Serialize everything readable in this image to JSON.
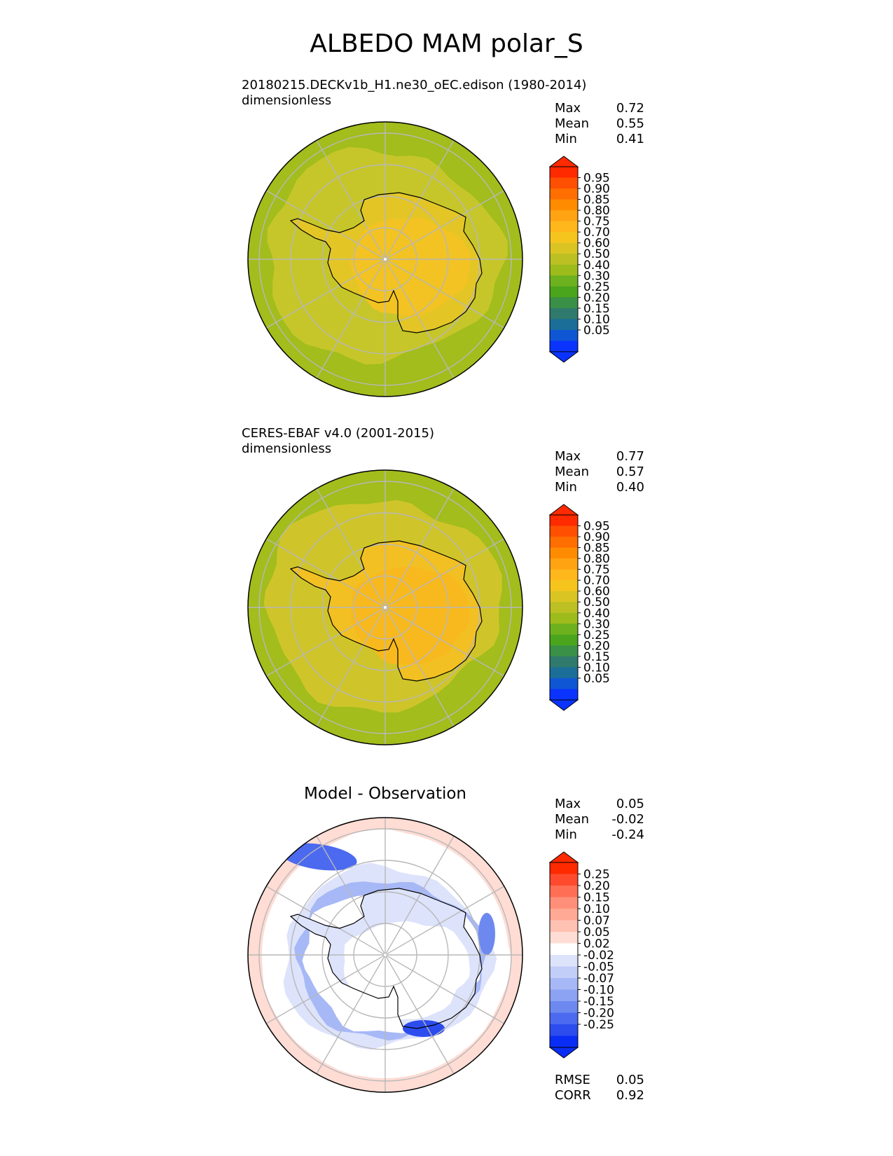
{
  "figure": {
    "title": "ALBEDO MAM polar_S"
  },
  "panels": [
    {
      "id": "test",
      "title_line1": "20180215.DECKv1b_H1.ne30_oEC.edison (1980-2014)",
      "title_line2": "dimensionless",
      "stats": [
        {
          "label": "Max",
          "value": "0.72"
        },
        {
          "label": "Mean",
          "value": "0.55"
        },
        {
          "label": "Min",
          "value": "0.41"
        }
      ],
      "colors": {
        "ocean": "#a2bd1c",
        "seaice": "#c6c62a",
        "ice": "#e3c626",
        "interior": "#f2c322"
      }
    },
    {
      "id": "reference",
      "title_line1": "CERES-EBAF v4.0 (2001-2015)",
      "title_line2": "dimensionless",
      "stats": [
        {
          "label": "Max",
          "value": "0.77"
        },
        {
          "label": "Mean",
          "value": "0.57"
        },
        {
          "label": "Min",
          "value": "0.40"
        }
      ],
      "colors": {
        "ocean": "#a2bd1c",
        "seaice": "#cfc52a",
        "ice": "#f2c022",
        "interior": "#f8b91e"
      }
    },
    {
      "id": "difference",
      "title": "Model - Observation",
      "stats": [
        {
          "label": "Max",
          "value": "0.05"
        },
        {
          "label": "Mean",
          "value": "-0.02"
        },
        {
          "label": "Min",
          "value": "-0.24"
        }
      ],
      "metrics": [
        {
          "label": "RMSE",
          "value": "0.05"
        },
        {
          "label": "CORR",
          "value": "0.92"
        }
      ]
    }
  ],
  "chart_data": [
    {
      "type": "heatmap",
      "title": "20180215.DECKv1b_H1.ne30_oEC.edison (1980-2014)",
      "units": "dimensionless",
      "projection": "south polar stereographic",
      "stats": {
        "max": 0.72,
        "mean": 0.55,
        "min": 0.41
      },
      "colorbar": {
        "ticks": [
          "0.95",
          "0.90",
          "0.85",
          "0.80",
          "0.75",
          "0.70",
          "0.60",
          "0.50",
          "0.40",
          "0.30",
          "0.25",
          "0.20",
          "0.15",
          "0.10",
          "0.05"
        ],
        "colors": [
          "#ff2a00",
          "#ff4f00",
          "#ff6e00",
          "#ff8c00",
          "#ffa313",
          "#ffb71c",
          "#f5c51e",
          "#d9c423",
          "#bcc022",
          "#9dbc1c",
          "#6db21e",
          "#4aa51c",
          "#3a9047",
          "#2f7a6d",
          "#1b6e98",
          "#0f56d4",
          "#0a33ff"
        ],
        "extend": "both"
      }
    },
    {
      "type": "heatmap",
      "title": "CERES-EBAF v4.0 (2001-2015)",
      "units": "dimensionless",
      "projection": "south polar stereographic",
      "stats": {
        "max": 0.77,
        "mean": 0.57,
        "min": 0.4
      },
      "colorbar": {
        "ticks": [
          "0.95",
          "0.90",
          "0.85",
          "0.80",
          "0.75",
          "0.70",
          "0.60",
          "0.50",
          "0.40",
          "0.30",
          "0.25",
          "0.20",
          "0.15",
          "0.10",
          "0.05"
        ],
        "colors": [
          "#ff2a00",
          "#ff4f00",
          "#ff6e00",
          "#ff8c00",
          "#ffa313",
          "#ffb71c",
          "#f5c51e",
          "#d9c423",
          "#bcc022",
          "#9dbc1c",
          "#6db21e",
          "#4aa51c",
          "#3a9047",
          "#2f7a6d",
          "#1b6e98",
          "#0f56d4",
          "#0a33ff"
        ],
        "extend": "both"
      }
    },
    {
      "type": "heatmap",
      "title": "Model - Observation",
      "projection": "south polar stereographic",
      "stats": {
        "max": 0.05,
        "mean": -0.02,
        "min": -0.24,
        "rmse": 0.05,
        "corr": 0.92
      },
      "colorbar": {
        "ticks": [
          "0.25",
          "0.20",
          "0.15",
          "0.10",
          "0.07",
          "0.05",
          "0.02",
          "-0.02",
          "-0.05",
          "-0.07",
          "-0.10",
          "-0.15",
          "-0.20",
          "-0.25"
        ],
        "colors": [
          "#ff2a00",
          "#ff4a2e",
          "#ff6e55",
          "#ff8f78",
          "#ffa995",
          "#ffc1b2",
          "#ffdcd4",
          "#ffffff",
          "#dde3fb",
          "#c2cdf8",
          "#a7b8f6",
          "#8ca2f3",
          "#6d89f0",
          "#4c6aef",
          "#2c4cee",
          "#0a2df5"
        ],
        "extend": "both"
      }
    }
  ]
}
